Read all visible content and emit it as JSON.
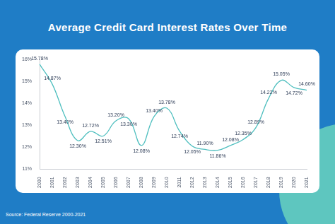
{
  "chart_data": {
    "type": "line",
    "title": "Average Credit Card Interest Rates Over Time",
    "source": "Source: Federal Reserve 2000-2021",
    "categories": [
      "2000",
      "2001",
      "2002",
      "2003",
      "2004",
      "2005",
      "2006",
      "2007",
      "2008",
      "2009",
      "2010",
      "2011",
      "2012",
      "2013",
      "2014",
      "2015",
      "2016",
      "2017",
      "2018",
      "2019",
      "2020",
      "2021"
    ],
    "values": [
      15.78,
      14.87,
      13.4,
      12.3,
      12.72,
      12.51,
      13.2,
      13.3,
      12.08,
      13.4,
      13.78,
      12.74,
      12.05,
      11.9,
      11.86,
      12.08,
      12.35,
      12.89,
      14.22,
      15.05,
      14.72,
      14.6
    ],
    "value_labels": [
      "15.78%",
      "14.87%",
      "13.40%",
      "12.30%",
      "12.72%",
      "12.51%",
      "13.20%",
      "13.30%",
      "12.08%",
      "13.40%",
      "13.78%",
      "12.74%",
      "12.05%",
      "11.90%",
      "11.86%",
      "12.08%",
      "12.35%",
      "12.89%",
      "14.22%",
      "15.05%",
      "14.72%",
      "14.60%"
    ],
    "color": "#4fbfbf",
    "line_style": "solid",
    "ylim": [
      11,
      16
    ],
    "yticks": [
      {
        "value": 11,
        "label": "11%"
      },
      {
        "value": 12,
        "label": "12%"
      },
      {
        "value": 13,
        "label": "13%"
      },
      {
        "value": 14,
        "label": "14%"
      },
      {
        "value": 15,
        "label": "15%"
      },
      {
        "value": 16,
        "label": "16%"
      }
    ],
    "grid": false,
    "data_labels": true
  }
}
